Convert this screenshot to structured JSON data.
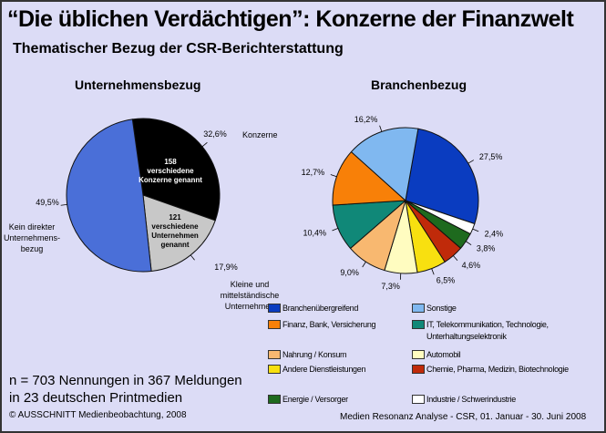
{
  "title": "“Die üblichen Verdächtigen”: Konzerne der Finanzwelt",
  "subtitle": "Thematischer Bezug der CSR-Berichterstattung",
  "note_lines": [
    "n = 703 Nennungen in 367 Meldungen",
    "in 23 deutschen Printmedien"
  ],
  "copyright": "© AUSSCHNITT Medienbeobachtung, 2008",
  "source": "Medien Resonanz Analyse - CSR, 01. Januar - 30. Juni 2008",
  "chart_data": [
    {
      "type": "pie",
      "title": "Unternehmensbezug",
      "slices": [
        {
          "label": "Konzerne",
          "value": 32.6,
          "value_label": "32,6%",
          "inner_text": [
            "158",
            "verschiedene",
            "Konzerne genannt"
          ],
          "color": "#000000"
        },
        {
          "label": "Kleine und mittelständische Unternehmen",
          "value": 17.9,
          "value_label": "17,9%",
          "inner_text": [
            "121",
            "verschiedene",
            "Unternehmen",
            "genannt"
          ],
          "color": "#c8c8c8"
        },
        {
          "label": "Kein direkter Unternehmens-bezug",
          "value": 49.5,
          "value_label": "49,5%",
          "color": "#4a6fd8"
        }
      ]
    },
    {
      "type": "pie",
      "title": "Branchenbezug",
      "slices": [
        {
          "label": "Branchenübergreifend",
          "value": 27.5,
          "value_label": "27,5%",
          "color": "#0a3cc0"
        },
        {
          "label": "Industrie / Schwerindustrie",
          "value": 2.4,
          "value_label": "2,4%",
          "color": "#ffffff"
        },
        {
          "label": "Energie / Versorger",
          "value": 3.8,
          "value_label": "3,8%",
          "color": "#1e6a1e"
        },
        {
          "label": "Chemie, Pharma, Medizin, Biotechnologie",
          "value": 4.6,
          "value_label": "4,6%",
          "color": "#c02a0a"
        },
        {
          "label": "Andere Dienstleistungen",
          "value": 6.5,
          "value_label": "6,5%",
          "color": "#f8e010"
        },
        {
          "label": "Automobil",
          "value": 7.3,
          "value_label": "7,3%",
          "color": "#fffcc0"
        },
        {
          "label": "Nahrung / Konsum",
          "value": 9.0,
          "value_label": "9,0%",
          "color": "#f8b870"
        },
        {
          "label": "IT, Telekommunikation, Technologie, Unterhaltungselektronik",
          "value": 10.4,
          "value_label": "10,4%",
          "color": "#108878"
        },
        {
          "label": "Finanz, Bank, Versicherung",
          "value": 12.7,
          "value_label": "12,7%",
          "color": "#f88008"
        },
        {
          "label": "Sonstige",
          "value": 16.2,
          "value_label": "16,2%",
          "color": "#80b8f0"
        }
      ],
      "legend": [
        {
          "label": "Branchenübergreifend",
          "color": "#0a3cc0"
        },
        {
          "label": "Sonstige",
          "color": "#80b8f0"
        },
        {
          "label": "Finanz, Bank, Versicherung",
          "color": "#f88008"
        },
        {
          "label": "IT, Telekommunikation, Technologie, Unterhaltungselektronik",
          "color": "#108878"
        },
        {
          "label": "Nahrung / Konsum",
          "color": "#f8b870"
        },
        {
          "label": "Automobil",
          "color": "#fffcc0"
        },
        {
          "label": "Andere Dienstleistungen",
          "color": "#f8e010"
        },
        {
          "label": "Chemie, Pharma, Medizin, Biotechnologie",
          "color": "#c02a0a"
        },
        {
          "label": "Energie / Versorger",
          "color": "#1e6a1e"
        },
        {
          "label": "Industrie / Schwerindustrie",
          "color": "#ffffff"
        }
      ]
    }
  ]
}
